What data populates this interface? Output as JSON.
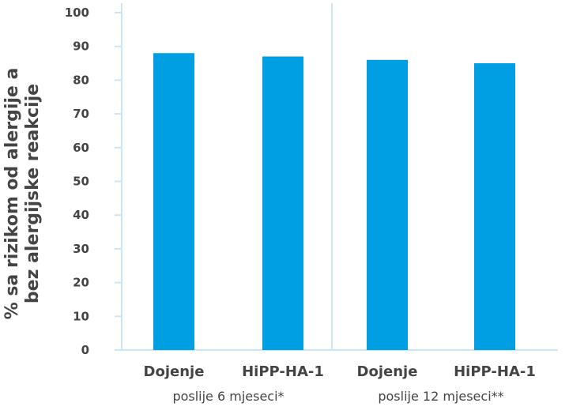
{
  "chart_data": {
    "type": "bar",
    "ylabel_lines": [
      "% sa rizikom od alergije a",
      "bez alergijske reakcije"
    ],
    "ylim": [
      0,
      100
    ],
    "yticks": [
      "0",
      "10",
      "20",
      "30",
      "40",
      "50",
      "60",
      "70",
      "80",
      "90",
      "100"
    ],
    "categories": [
      "Dojenje",
      "HiPP-HA-1",
      "Dojenje",
      "HiPP-HA-1"
    ],
    "values": [
      88,
      87,
      86,
      85
    ],
    "groups": [
      "poslije 6 mjeseci*",
      "poslije 12 mjeseci**"
    ],
    "grid": false,
    "colors": {
      "bar": "#009fe3",
      "axis": "#c8e6f5"
    }
  }
}
